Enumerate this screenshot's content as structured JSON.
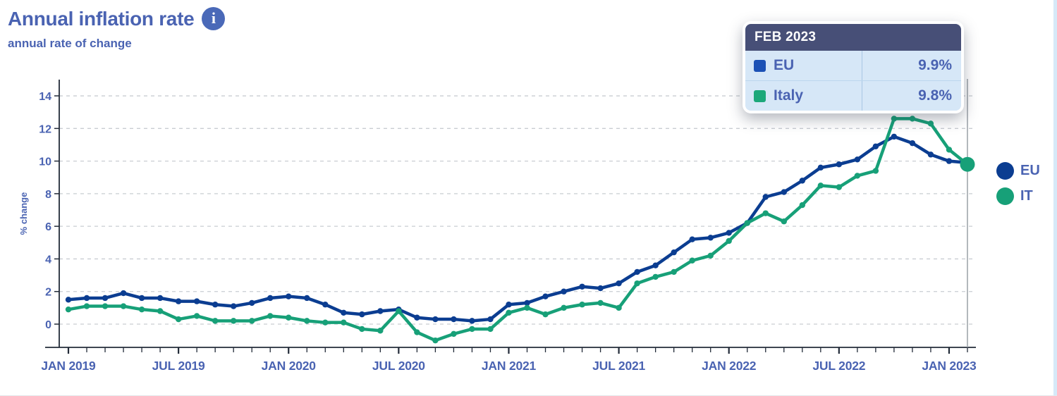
{
  "header": {
    "title": "Annual inflation rate",
    "subtitle": "annual rate of change",
    "info_glyph": "i"
  },
  "tooltip": {
    "date": "FEB 2023",
    "rows": [
      {
        "label": "EU",
        "value": "9.9%",
        "swatch_color": "#1c51b5"
      },
      {
        "label": "Italy",
        "value": "9.8%",
        "swatch_color": "#1ca87a"
      }
    ]
  },
  "legend": {
    "position": "right",
    "items": [
      {
        "label": "EU",
        "color": "#0b3d91"
      },
      {
        "label": "IT",
        "color": "#17a078"
      }
    ]
  },
  "chart_data": {
    "type": "line",
    "title": "Annual inflation rate",
    "ylabel": "% change",
    "yticks": [
      0,
      2,
      4,
      6,
      8,
      10,
      12,
      14
    ],
    "ylim": [
      -1.9,
      15.1
    ],
    "grid": "dashed-horizontal",
    "x_tick_labels": [
      "JAN 2019",
      "JUL 2019",
      "JAN 2020",
      "JUL 2020",
      "JAN 2021",
      "JUL 2021",
      "JAN 2022",
      "JUL 2022",
      "JAN 2023"
    ],
    "x_tick_every": 6,
    "x_minor_tick_unit": "month",
    "n_points": 50,
    "series": [
      {
        "name": "EU",
        "color": "#0b3d91",
        "values": [
          1.5,
          1.6,
          1.6,
          1.9,
          1.6,
          1.6,
          1.4,
          1.4,
          1.2,
          1.1,
          1.3,
          1.6,
          1.7,
          1.6,
          1.2,
          0.7,
          0.6,
          0.8,
          0.9,
          0.4,
          0.3,
          0.3,
          0.2,
          0.3,
          1.2,
          1.3,
          1.7,
          2.0,
          2.3,
          2.2,
          2.5,
          3.2,
          3.6,
          4.4,
          5.2,
          5.3,
          5.6,
          6.2,
          7.8,
          8.1,
          8.8,
          9.6,
          9.8,
          10.1,
          10.9,
          11.5,
          11.1,
          10.4,
          10.0,
          9.9
        ]
      },
      {
        "name": "IT",
        "color": "#17a078",
        "values": [
          0.9,
          1.1,
          1.1,
          1.1,
          0.9,
          0.8,
          0.3,
          0.5,
          0.2,
          0.2,
          0.2,
          0.5,
          0.4,
          0.2,
          0.1,
          0.1,
          -0.3,
          -0.4,
          0.8,
          -0.5,
          -1.0,
          -0.6,
          -0.3,
          -0.3,
          0.7,
          1.0,
          0.6,
          1.0,
          1.2,
          1.3,
          1.0,
          2.5,
          2.9,
          3.2,
          3.9,
          4.2,
          5.1,
          6.2,
          6.8,
          6.3,
          7.3,
          8.5,
          8.4,
          9.1,
          9.4,
          12.6,
          12.6,
          12.3,
          10.7,
          9.8
        ]
      }
    ],
    "highlight": {
      "x_label": "FEB 2023",
      "point_index": 49,
      "values": {
        "EU": 9.9,
        "IT": 9.8
      }
    },
    "legend_position": "right"
  }
}
